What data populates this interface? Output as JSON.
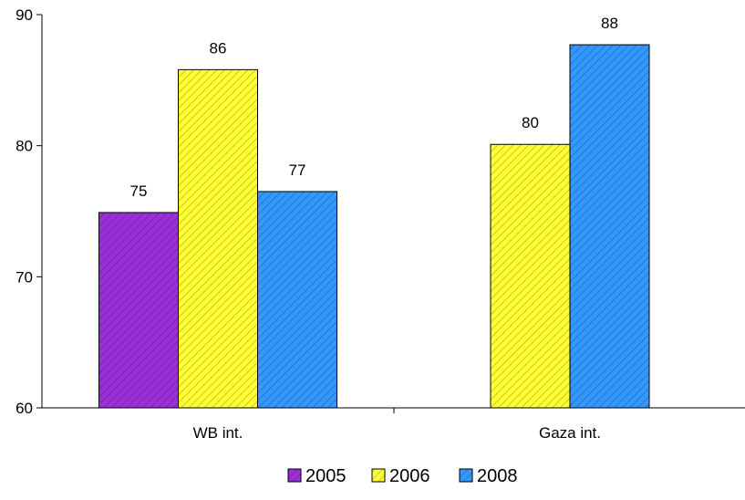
{
  "chart_data": {
    "type": "bar",
    "categories": [
      "WB int.",
      "Gaza int."
    ],
    "series": [
      {
        "name": "2005",
        "color": "#9b30d9",
        "values": [
          75,
          null
        ]
      },
      {
        "name": "2006",
        "color": "#ffff33",
        "values": [
          86,
          80
        ]
      },
      {
        "name": "2008",
        "color": "#3399ff",
        "values": [
          77,
          88
        ]
      }
    ],
    "value_labels": [
      [
        "75",
        null
      ],
      [
        "86",
        "80"
      ],
      [
        "77",
        "88"
      ]
    ],
    "precise_values": [
      [
        74.9,
        null
      ],
      [
        85.8,
        80.1
      ],
      [
        76.5,
        87.7
      ]
    ],
    "ylim": [
      60,
      90
    ],
    "yticks": [
      60,
      70,
      80,
      90
    ],
    "fill_pattern": "diagonal-hatch",
    "legend_position": "bottom",
    "grid": false
  }
}
